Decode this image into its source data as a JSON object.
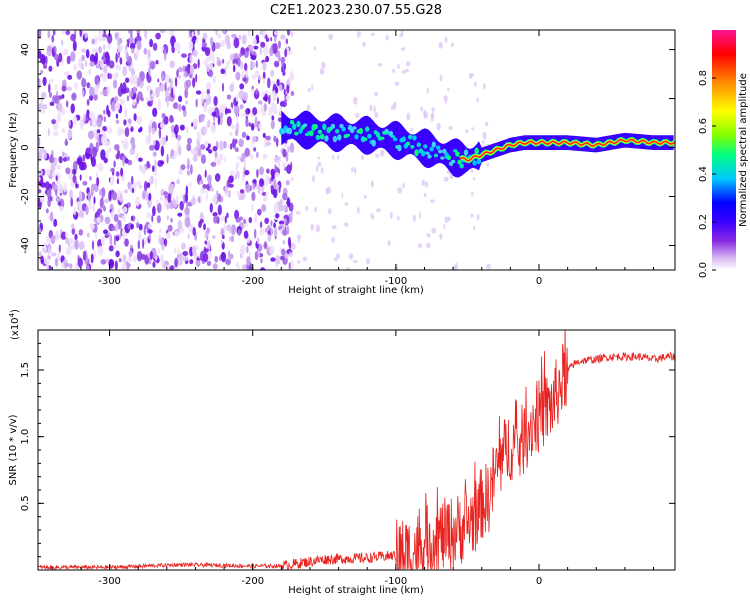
{
  "title": "C2E1.2023.230.07.55.G28",
  "chart_data": [
    {
      "type": "heatmap",
      "xlabel": "Height of straight line (km)",
      "ylabel": "Frequency (Hz)",
      "xlim": [
        -350,
        95
      ],
      "ylim": [
        -50,
        48
      ],
      "x_ticks": [
        -300,
        -200,
        -100,
        0
      ],
      "y_ticks": [
        -40,
        -20,
        0,
        20,
        40
      ],
      "colorbar": {
        "label": "Normalized spectral amplitude",
        "range": [
          0.0,
          1.0
        ],
        "ticks": [
          "0.0",
          "0.2",
          "0.4",
          "0.6",
          "0.8"
        ],
        "tick_values": [
          0.0,
          0.2,
          0.4,
          0.6,
          0.8
        ]
      },
      "colormap": [
        "#ffffff",
        "#d6b8f0",
        "#8a2be2",
        "#3a00ff",
        "#0000ff",
        "#00c8ff",
        "#00ff80",
        "#7fff00",
        "#ffff00",
        "#ff8c00",
        "#ff0000",
        "#ff1493"
      ],
      "noise_region_x": [
        -350,
        -175
      ],
      "signal_track": [
        {
          "x": -180,
          "y": 8
        },
        {
          "x": -160,
          "y": 7
        },
        {
          "x": -140,
          "y": 6
        },
        {
          "x": -120,
          "y": 5
        },
        {
          "x": -100,
          "y": 3
        },
        {
          "x": -80,
          "y": 0
        },
        {
          "x": -60,
          "y": -4
        },
        {
          "x": -50,
          "y": -5
        },
        {
          "x": -40,
          "y": -3
        },
        {
          "x": -30,
          "y": -1
        },
        {
          "x": -20,
          "y": 1
        },
        {
          "x": -10,
          "y": 2
        },
        {
          "x": 0,
          "y": 2
        },
        {
          "x": 20,
          "y": 2
        },
        {
          "x": 40,
          "y": 1
        },
        {
          "x": 60,
          "y": 3
        },
        {
          "x": 80,
          "y": 2
        },
        {
          "x": 95,
          "y": 2
        }
      ]
    },
    {
      "type": "line",
      "xlabel": "Height of straight line (km)",
      "ylabel": "SNR (10 * v/v)",
      "y_multiplier": "(x10",
      "y_multiplier_exp": "4",
      "y_multiplier_close": ")",
      "xlim": [
        -350,
        95
      ],
      "ylim": [
        0,
        1.8
      ],
      "x_ticks": [
        -300,
        -200,
        -100,
        0
      ],
      "y_ticks": [
        0.5,
        1.0,
        1.5
      ],
      "y_tick_labels": [
        "0.5",
        "1.0",
        "1.5"
      ],
      "line_color": "#e8221e",
      "series": [
        {
          "x": [
            -350,
            -300,
            -250,
            -200,
            -180,
            -150,
            -120,
            -100,
            -90,
            -80,
            -70,
            -60,
            -50,
            -45,
            -40,
            -35,
            -30,
            -25,
            -20,
            -15,
            -10,
            -5,
            0,
            5,
            10,
            15,
            20,
            25,
            30,
            40,
            50,
            60,
            70,
            80,
            90,
            95
          ],
          "values": [
            0.02,
            0.02,
            0.04,
            0.03,
            0.03,
            0.08,
            0.09,
            0.11,
            0.13,
            0.2,
            0.25,
            0.28,
            0.35,
            0.4,
            0.5,
            0.55,
            0.75,
            0.85,
            0.95,
            0.9,
            1.0,
            1.1,
            1.15,
            1.2,
            1.25,
            1.4,
            1.5,
            1.55,
            1.57,
            1.58,
            1.6,
            1.6,
            1.6,
            1.58,
            1.6,
            1.6
          ]
        }
      ]
    }
  ]
}
